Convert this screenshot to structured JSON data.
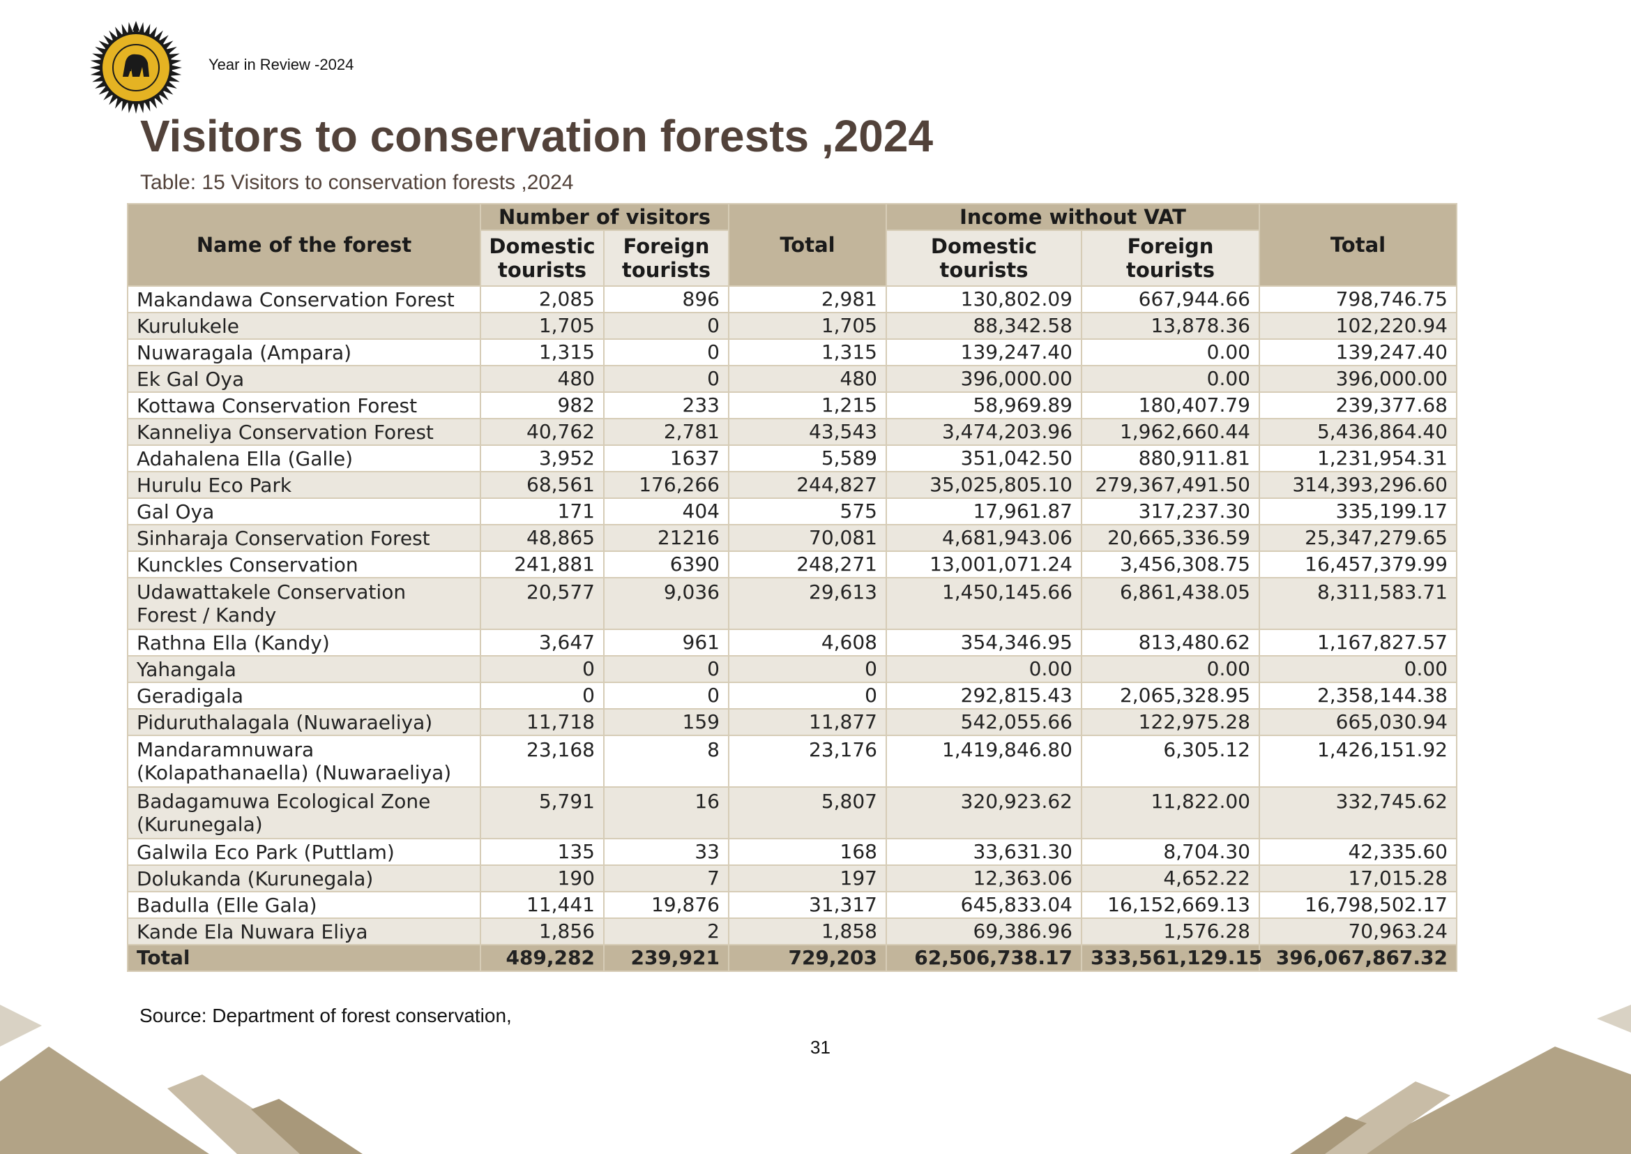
{
  "header": {
    "text": "Year in Review -2024",
    "logo_icon": "sri-lanka-tourism-seal"
  },
  "title": "Visitors to conservation forests ,2024",
  "caption": "Table: 15 Visitors to conservation forests ,2024",
  "table": {
    "headers": {
      "name": "Name of the forest",
      "visitors_group": "Number of visitors",
      "visitors_domestic": "Domestic tourists",
      "visitors_foreign": "Foreign tourists",
      "visitors_total": "Total",
      "income_group": "Income without VAT",
      "income_domestic": "Domestic tourists",
      "income_foreign": "Foreign tourists",
      "income_total": "Total"
    },
    "rows": [
      {
        "name": "Makandawa Conservation Forest",
        "d": "2,085",
        "f": "896",
        "t": "2,981",
        "id": "130,802.09",
        "if": "667,944.66",
        "it": "798,746.75"
      },
      {
        "name": "Kurulukele",
        "d": "1,705",
        "f": "0",
        "t": "1,705",
        "id": "88,342.58",
        "if": "13,878.36",
        "it": "102,220.94"
      },
      {
        "name": "Nuwaragala (Ampara)",
        "d": "1,315",
        "f": "0",
        "t": "1,315",
        "id": "139,247.40",
        "if": "0.00",
        "it": "139,247.40"
      },
      {
        "name": "Ek Gal Oya",
        "d": "480",
        "f": "0",
        "t": "480",
        "id": "396,000.00",
        "if": "0.00",
        "it": "396,000.00"
      },
      {
        "name": "Kottawa Conservation Forest",
        "d": "982",
        "f": "233",
        "t": "1,215",
        "id": "58,969.89",
        "if": "180,407.79",
        "it": "239,377.68"
      },
      {
        "name": "Kanneliya Conservation Forest",
        "d": "40,762",
        "f": "2,781",
        "t": "43,543",
        "id": "3,474,203.96",
        "if": "1,962,660.44",
        "it": "5,436,864.40"
      },
      {
        "name": "Adahalena Ella (Galle)",
        "d": "3,952",
        "f": "1637",
        "t": "5,589",
        "id": "351,042.50",
        "if": "880,911.81",
        "it": "1,231,954.31"
      },
      {
        "name": "Hurulu Eco Park",
        "d": "68,561",
        "f": "176,266",
        "t": "244,827",
        "id": "35,025,805.10",
        "if": "279,367,491.50",
        "it": "314,393,296.60"
      },
      {
        "name": "Gal Oya",
        "d": "171",
        "f": "404",
        "t": "575",
        "id": "17,961.87",
        "if": "317,237.30",
        "it": "335,199.17"
      },
      {
        "name": "Sinharaja Conservation Forest",
        "d": "48,865",
        "f": "21216",
        "t": "70,081",
        "id": "4,681,943.06",
        "if": "20,665,336.59",
        "it": "25,347,279.65"
      },
      {
        "name": "Kunckles Conservation",
        "d": "241,881",
        "f": "6390",
        "t": "248,271",
        "id": "13,001,071.24",
        "if": "3,456,308.75",
        "it": "16,457,379.99"
      },
      {
        "name": "Udawattakele Conservation Forest / Kandy",
        "d": "20,577",
        "f": "9,036",
        "t": "29,613",
        "id": "1,450,145.66",
        "if": "6,861,438.05",
        "it": "8,311,583.71"
      },
      {
        "name": "Rathna Ella (Kandy)",
        "d": "3,647",
        "f": "961",
        "t": "4,608",
        "id": "354,346.95",
        "if": "813,480.62",
        "it": "1,167,827.57"
      },
      {
        "name": "Yahangala",
        "d": "0",
        "f": "0",
        "t": "0",
        "id": "0.00",
        "if": "0.00",
        "it": "0.00"
      },
      {
        "name": "Geradigala",
        "d": "0",
        "f": "0",
        "t": "0",
        "id": "292,815.43",
        "if": "2,065,328.95",
        "it": "2,358,144.38"
      },
      {
        "name": "Piduruthalagala (Nuwaraeliya)",
        "d": "11,718",
        "f": "159",
        "t": "11,877",
        "id": "542,055.66",
        "if": "122,975.28",
        "it": "665,030.94"
      },
      {
        "name": "Mandaramnuwara (Kolapathanaella) (Nuwaraeliya)",
        "d": "23,168",
        "f": "8",
        "t": "23,176",
        "id": "1,419,846.80",
        "if": "6,305.12",
        "it": "1,426,151.92"
      },
      {
        "name": "Badagamuwa Ecological Zone (Kurunegala)",
        "d": "5,791",
        "f": "16",
        "t": "5,807",
        "id": "320,923.62",
        "if": "11,822.00",
        "it": "332,745.62"
      },
      {
        "name": "Galwila Eco Park (Puttlam)",
        "d": "135",
        "f": "33",
        "t": "168",
        "id": "33,631.30",
        "if": "8,704.30",
        "it": "42,335.60"
      },
      {
        "name": "Dolukanda (Kurunegala)",
        "d": "190",
        "f": "7",
        "t": "197",
        "id": "12,363.06",
        "if": "4,652.22",
        "it": "17,015.28"
      },
      {
        "name": "Badulla (Elle Gala)",
        "d": "11,441",
        "f": "19,876",
        "t": "31,317",
        "id": "645,833.04",
        "if": "16,152,669.13",
        "it": "16,798,502.17"
      },
      {
        "name": "Kande Ela Nuwara Eliya",
        "d": "1,856",
        "f": "2",
        "t": "1,858",
        "id": "69,386.96",
        "if": "1,576.28",
        "it": "70,963.24"
      }
    ],
    "total": {
      "name": "Total",
      "d": "489,282",
      "f": "239,921",
      "t": "729,203",
      "id": "62,506,738.17",
      "if": "333,561,129.15",
      "it": "396,067,867.32"
    }
  },
  "source": "Source:  Department of forest conservation,",
  "page_number": "31",
  "colors": {
    "title": "#52423a",
    "header_bg": "#c2b59b",
    "row_alt": "#ebe7de"
  }
}
